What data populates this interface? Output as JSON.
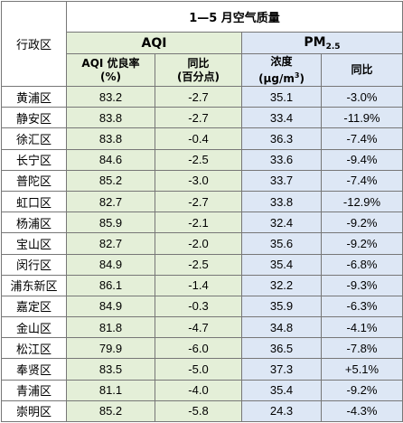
{
  "table": {
    "title": "1—5 月空气质量",
    "district_header": "行政区",
    "aqi_group": "AQI",
    "pm_group_main": "PM",
    "pm_group_sub": "2.5",
    "aqi_rate_line1": "AQI 优良率",
    "aqi_rate_line2": "(%)",
    "aqi_yoy_line1": "同比",
    "aqi_yoy_line2": "(百分点)",
    "pm_conc_line1": "浓度",
    "pm_conc_unit_a": "(μg/m",
    "pm_conc_unit_sup": "3",
    "pm_conc_unit_b": ")",
    "pm_yoy": "同比",
    "rows": [
      {
        "district": "黄浦区",
        "aqi_rate": "83.2",
        "aqi_yoy": "-2.7",
        "pm_conc": "35.1",
        "pm_yoy": "-3.0%"
      },
      {
        "district": "静安区",
        "aqi_rate": "83.8",
        "aqi_yoy": "-2.7",
        "pm_conc": "33.4",
        "pm_yoy": "-11.9%"
      },
      {
        "district": "徐汇区",
        "aqi_rate": "83.8",
        "aqi_yoy": "-0.4",
        "pm_conc": "36.3",
        "pm_yoy": "-7.4%"
      },
      {
        "district": "长宁区",
        "aqi_rate": "84.6",
        "aqi_yoy": "-2.5",
        "pm_conc": "33.6",
        "pm_yoy": "-9.4%"
      },
      {
        "district": "普陀区",
        "aqi_rate": "85.2",
        "aqi_yoy": "-3.0",
        "pm_conc": "33.7",
        "pm_yoy": "-7.4%"
      },
      {
        "district": "虹口区",
        "aqi_rate": "82.7",
        "aqi_yoy": "-2.7",
        "pm_conc": "33.8",
        "pm_yoy": "-12.9%"
      },
      {
        "district": "杨浦区",
        "aqi_rate": "85.9",
        "aqi_yoy": "-2.1",
        "pm_conc": "32.4",
        "pm_yoy": "-9.2%"
      },
      {
        "district": "宝山区",
        "aqi_rate": "82.7",
        "aqi_yoy": "-2.0",
        "pm_conc": "35.6",
        "pm_yoy": "-9.2%"
      },
      {
        "district": "闵行区",
        "aqi_rate": "84.9",
        "aqi_yoy": "-2.5",
        "pm_conc": "35.4",
        "pm_yoy": "-6.8%"
      },
      {
        "district": "浦东新区",
        "aqi_rate": "86.1",
        "aqi_yoy": "-1.4",
        "pm_conc": "32.2",
        "pm_yoy": "-9.3%"
      },
      {
        "district": "嘉定区",
        "aqi_rate": "84.9",
        "aqi_yoy": "-0.3",
        "pm_conc": "35.9",
        "pm_yoy": "-6.3%"
      },
      {
        "district": "金山区",
        "aqi_rate": "81.8",
        "aqi_yoy": "-4.7",
        "pm_conc": "34.8",
        "pm_yoy": "-4.1%"
      },
      {
        "district": "松江区",
        "aqi_rate": "79.9",
        "aqi_yoy": "-6.0",
        "pm_conc": "36.5",
        "pm_yoy": "-7.8%"
      },
      {
        "district": "奉贤区",
        "aqi_rate": "83.5",
        "aqi_yoy": "-5.0",
        "pm_conc": "37.3",
        "pm_yoy": "+5.1%"
      },
      {
        "district": "青浦区",
        "aqi_rate": "81.1",
        "aqi_yoy": "-4.0",
        "pm_conc": "35.4",
        "pm_yoy": "-9.2%"
      },
      {
        "district": "崇明区",
        "aqi_rate": "85.2",
        "aqi_yoy": "-5.8",
        "pm_conc": "24.3",
        "pm_yoy": "-4.3%"
      }
    ]
  }
}
